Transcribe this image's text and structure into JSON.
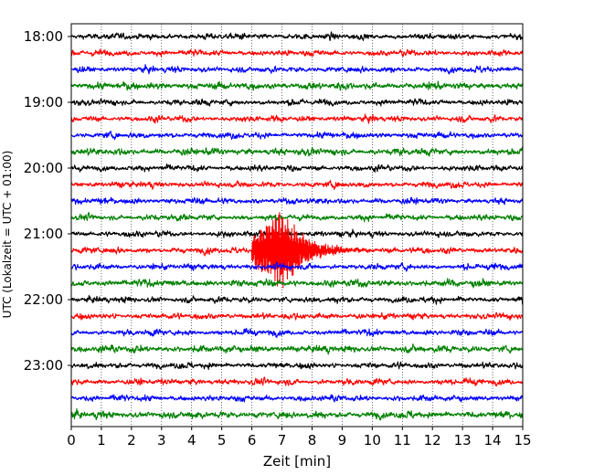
{
  "chart_data": {
    "type": "line",
    "title": "",
    "xlabel": "Zeit  [min]",
    "ylabel": "UTC (Lokalzeit = UTC + 01:00)",
    "xlim": [
      0,
      15
    ],
    "x_ticks": [
      0,
      1,
      2,
      3,
      4,
      5,
      6,
      7,
      8,
      9,
      10,
      11,
      12,
      13,
      14,
      15
    ],
    "y_ticks": [
      "18:00",
      "19:00",
      "20:00",
      "21:00",
      "22:00",
      "23:00"
    ],
    "grid": "vertical dotted",
    "trace_minutes": 15,
    "trace_colors": [
      "#000000",
      "#ff0000",
      "#0000ff",
      "#008000"
    ],
    "series": [
      {
        "start": "18:00",
        "amplitude": 0.12
      },
      {
        "start": "18:15",
        "amplitude": 0.12
      },
      {
        "start": "18:30",
        "amplitude": 0.12
      },
      {
        "start": "18:45",
        "amplitude": 0.14
      },
      {
        "start": "19:00",
        "amplitude": 0.12
      },
      {
        "start": "19:15",
        "amplitude": 0.12
      },
      {
        "start": "19:30",
        "amplitude": 0.12
      },
      {
        "start": "19:45",
        "amplitude": 0.14
      },
      {
        "start": "20:00",
        "amplitude": 0.12
      },
      {
        "start": "20:15",
        "amplitude": 0.12
      },
      {
        "start": "20:30",
        "amplitude": 0.12
      },
      {
        "start": "20:45",
        "amplitude": 0.12
      },
      {
        "start": "21:00",
        "amplitude": 0.12
      },
      {
        "start": "21:15",
        "amplitude": 0.12,
        "event": {
          "onset_min": 6.0,
          "peak_min": 7.0,
          "end_min": 10.2,
          "peak_amplitude": 1.6
        }
      },
      {
        "start": "21:30",
        "amplitude": 0.12
      },
      {
        "start": "21:45",
        "amplitude": 0.14
      },
      {
        "start": "22:00",
        "amplitude": 0.12
      },
      {
        "start": "22:15",
        "amplitude": 0.12
      },
      {
        "start": "22:30",
        "amplitude": 0.12
      },
      {
        "start": "22:45",
        "amplitude": 0.14
      },
      {
        "start": "23:00",
        "amplitude": 0.12
      },
      {
        "start": "23:15",
        "amplitude": 0.12
      },
      {
        "start": "23:30",
        "amplitude": 0.12
      },
      {
        "start": "23:45",
        "amplitude": 0.14
      }
    ]
  }
}
